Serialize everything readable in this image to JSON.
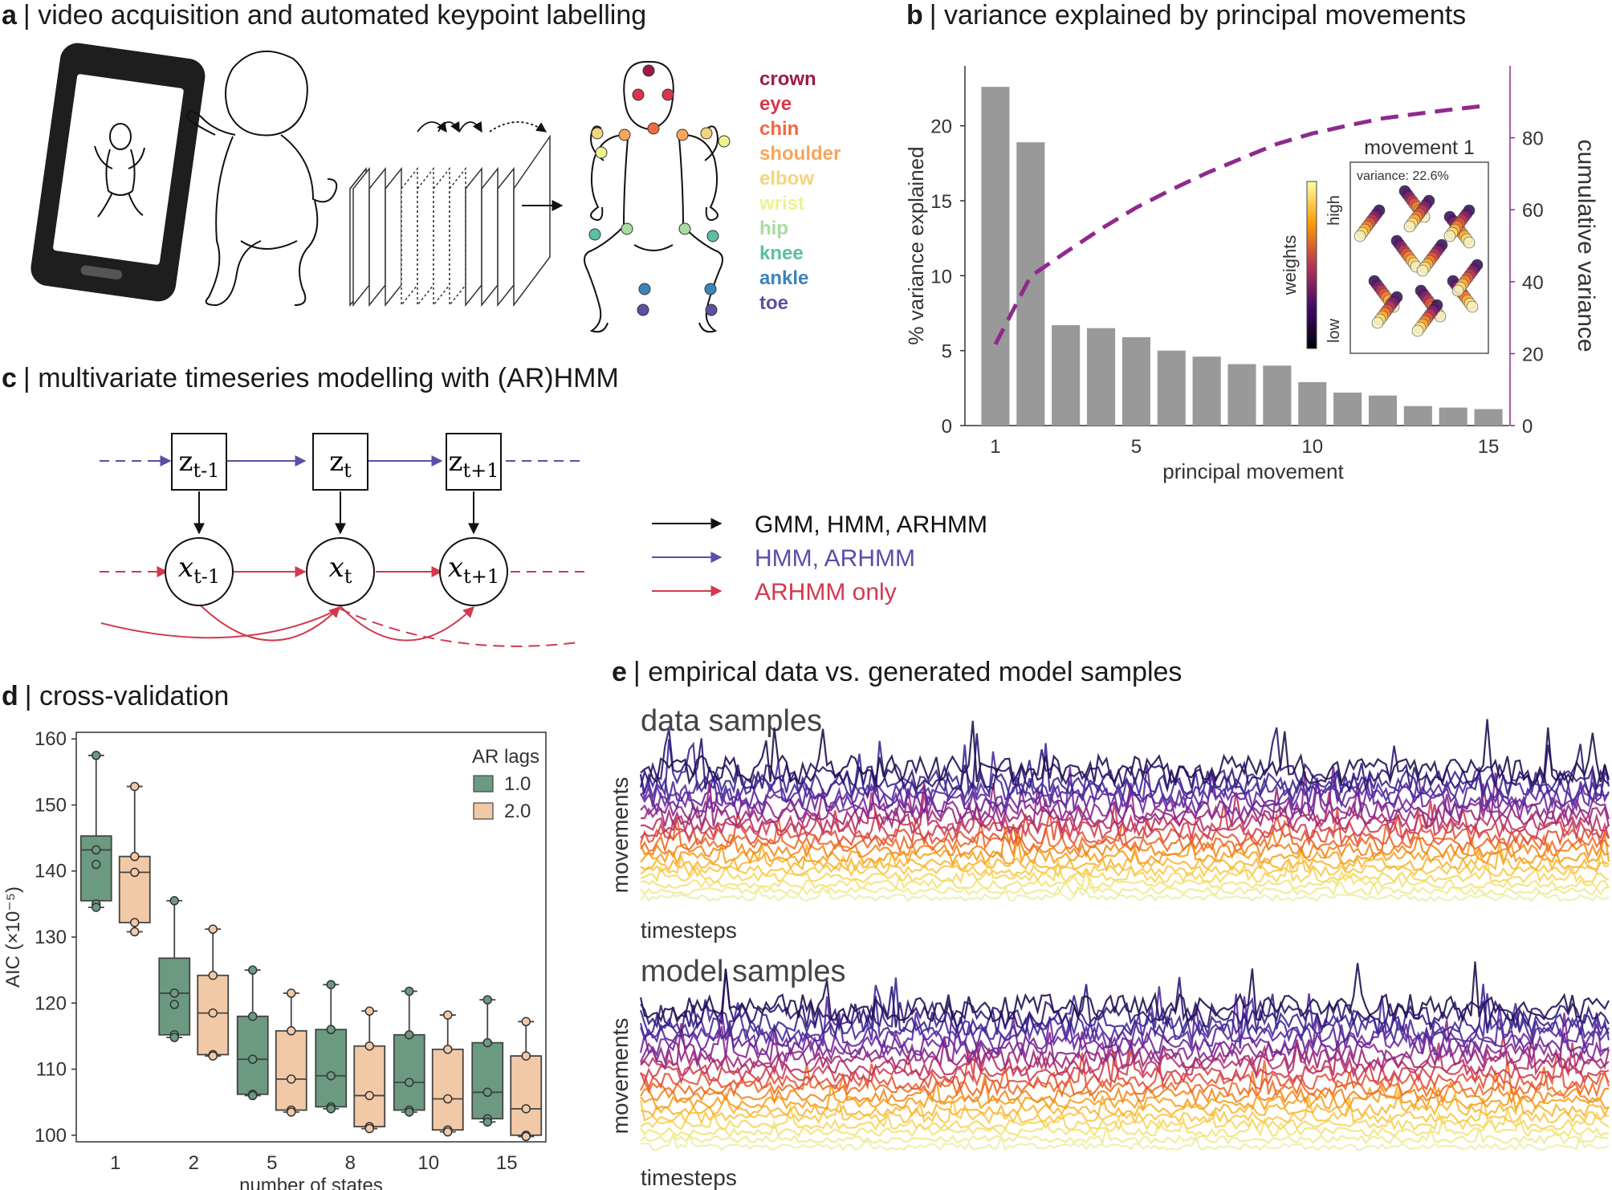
{
  "panels": {
    "a": {
      "letter": "a",
      "title": "| video acquisition and automated keypoint labelling"
    },
    "b": {
      "letter": "b",
      "title": "| variance explained by principal movements"
    },
    "c": {
      "letter": "c",
      "title": "| multivariate timeseries modelling with (AR)HMM"
    },
    "d": {
      "letter": "d",
      "title": "| cross-validation"
    },
    "e": {
      "letter": "e",
      "title": "| empirical data vs. generated model samples"
    }
  },
  "keypoints": [
    {
      "name": "crown",
      "color": "#9e1a4a"
    },
    {
      "name": "eye",
      "color": "#d6374d"
    },
    {
      "name": "chin",
      "color": "#ee6a42"
    },
    {
      "name": "shoulder",
      "color": "#f6a65c"
    },
    {
      "name": "elbow",
      "color": "#f3d57d"
    },
    {
      "name": "wrist",
      "color": "#eef28f"
    },
    {
      "name": "hip",
      "color": "#a9dca0"
    },
    {
      "name": "knee",
      "color": "#5cbfa4"
    },
    {
      "name": "ankle",
      "color": "#3b84bb"
    },
    {
      "name": "toe",
      "color": "#5e4fa2"
    }
  ],
  "hmm": {
    "z_nodes": [
      {
        "base": "z",
        "sub": "t-1"
      },
      {
        "base": "z",
        "sub": "t"
      },
      {
        "base": "z",
        "sub": "t+1"
      }
    ],
    "x_nodes": [
      {
        "base": "x",
        "sub": "t-1"
      },
      {
        "base": "x",
        "sub": "t"
      },
      {
        "base": "x",
        "sub": "t+1"
      }
    ],
    "legend": [
      {
        "label": "GMM, HMM, ARHMM",
        "color": "#111111"
      },
      {
        "label": "HMM, ARHMM",
        "color": "#5b4ea8"
      },
      {
        "label": "ARHMM only",
        "color": "#d2394f"
      }
    ]
  },
  "inset": {
    "title": "movement 1",
    "variance_label": "variance: 22.6%",
    "cbar_label": "weights",
    "cbar_high": "high",
    "cbar_low": "low"
  },
  "samples": {
    "data_title": "data samples",
    "model_title": "model samples",
    "ylabel": "movements",
    "xlabel": "timesteps"
  },
  "chart_data": [
    {
      "type": "bar",
      "title": "variance explained by principal movements",
      "xlabel": "principal movement",
      "ylabel": "% variance explained",
      "y2label": "cumulative variance",
      "categories": [
        "1",
        "2",
        "3",
        "4",
        "5",
        "6",
        "7",
        "8",
        "9",
        "10",
        "11",
        "12",
        "13",
        "14",
        "15"
      ],
      "xticks": [
        "1",
        "5",
        "10",
        "15"
      ],
      "ylim": [
        0,
        24
      ],
      "yticks": [
        "0",
        "5",
        "10",
        "15",
        "20"
      ],
      "y2lim": [
        0,
        100
      ],
      "y2ticks": [
        "0",
        "20",
        "40",
        "60",
        "80"
      ],
      "series": [
        {
          "name": "% variance explained",
          "values": [
            22.6,
            18.9,
            6.7,
            6.5,
            5.9,
            5.0,
            4.6,
            4.1,
            4.0,
            2.9,
            2.2,
            2.0,
            1.3,
            1.2,
            1.1
          ]
        },
        {
          "name": "cumulative variance",
          "values": [
            22.6,
            41.5,
            48.2,
            54.7,
            60.6,
            65.6,
            70.2,
            74.3,
            78.3,
            81.2,
            83.4,
            85.4,
            86.7,
            87.9,
            89.0
          ]
        }
      ],
      "bar_color": "#999999",
      "line_color": "#8e2a8e"
    },
    {
      "type": "box",
      "title": "cross-validation",
      "xlabel": "number of states",
      "ylabel": "AIC (×10⁻⁵)",
      "categories": [
        "1",
        "2",
        "5",
        "8",
        "10",
        "15"
      ],
      "ylim": [
        99,
        161
      ],
      "yticks": [
        "100",
        "110",
        "120",
        "130",
        "140",
        "150",
        "160"
      ],
      "legend_title": "AR lags",
      "series": [
        {
          "name": "1.0",
          "color": "#6b9a81",
          "boxes": [
            {
              "min": 134.5,
              "q1": 135.5,
              "median": 143.2,
              "q3": 145.3,
              "max": 157.5,
              "points": [
                157.5,
                143.2,
                141.0,
                135.0,
                134.5
              ]
            },
            {
              "min": 114.8,
              "q1": 115.2,
              "median": 121.5,
              "q3": 126.8,
              "max": 135.5,
              "points": [
                135.5,
                121.5,
                119.8,
                115.2,
                114.8
              ]
            },
            {
              "min": 106.0,
              "q1": 106.2,
              "median": 111.5,
              "q3": 118.0,
              "max": 125.0,
              "points": [
                125.0,
                118.0,
                111.5,
                106.2,
                106.0
              ]
            },
            {
              "min": 104.0,
              "q1": 104.3,
              "median": 109.0,
              "q3": 116.0,
              "max": 122.8,
              "points": [
                122.8,
                116.0,
                109.0,
                104.3,
                104.0
              ]
            },
            {
              "min": 103.5,
              "q1": 103.8,
              "median": 108.0,
              "q3": 115.2,
              "max": 121.8,
              "points": [
                121.8,
                115.2,
                108.0,
                103.8,
                103.5
              ]
            },
            {
              "min": 102.0,
              "q1": 102.5,
              "median": 106.5,
              "q3": 114.0,
              "max": 120.5,
              "points": [
                120.5,
                114.0,
                106.5,
                102.5,
                102.0
              ]
            }
          ]
        },
        {
          "name": "2.0",
          "color": "#f2c9a7",
          "boxes": [
            {
              "min": 130.8,
              "q1": 132.2,
              "median": 139.8,
              "q3": 142.2,
              "max": 152.8,
              "points": [
                152.8,
                142.2,
                139.8,
                132.2,
                130.8
              ]
            },
            {
              "min": 112.0,
              "q1": 112.2,
              "median": 118.5,
              "q3": 124.2,
              "max": 131.2,
              "points": [
                131.2,
                124.2,
                118.5,
                112.2,
                112.0
              ]
            },
            {
              "min": 103.5,
              "q1": 103.8,
              "median": 108.5,
              "q3": 115.8,
              "max": 121.5,
              "points": [
                121.5,
                115.8,
                108.5,
                103.8,
                103.5
              ]
            },
            {
              "min": 101.0,
              "q1": 101.3,
              "median": 106.0,
              "q3": 113.5,
              "max": 118.8,
              "points": [
                118.8,
                113.5,
                106.0,
                101.3,
                101.0
              ]
            },
            {
              "min": 100.5,
              "q1": 100.8,
              "median": 105.5,
              "q3": 113.0,
              "max": 118.2,
              "points": [
                118.2,
                113.0,
                105.5,
                100.8,
                100.5
              ]
            },
            {
              "min": 99.8,
              "q1": 100.0,
              "median": 104.0,
              "q3": 112.0,
              "max": 117.2,
              "points": [
                117.2,
                112.0,
                104.0,
                100.0,
                99.8
              ]
            }
          ]
        }
      ]
    }
  ]
}
